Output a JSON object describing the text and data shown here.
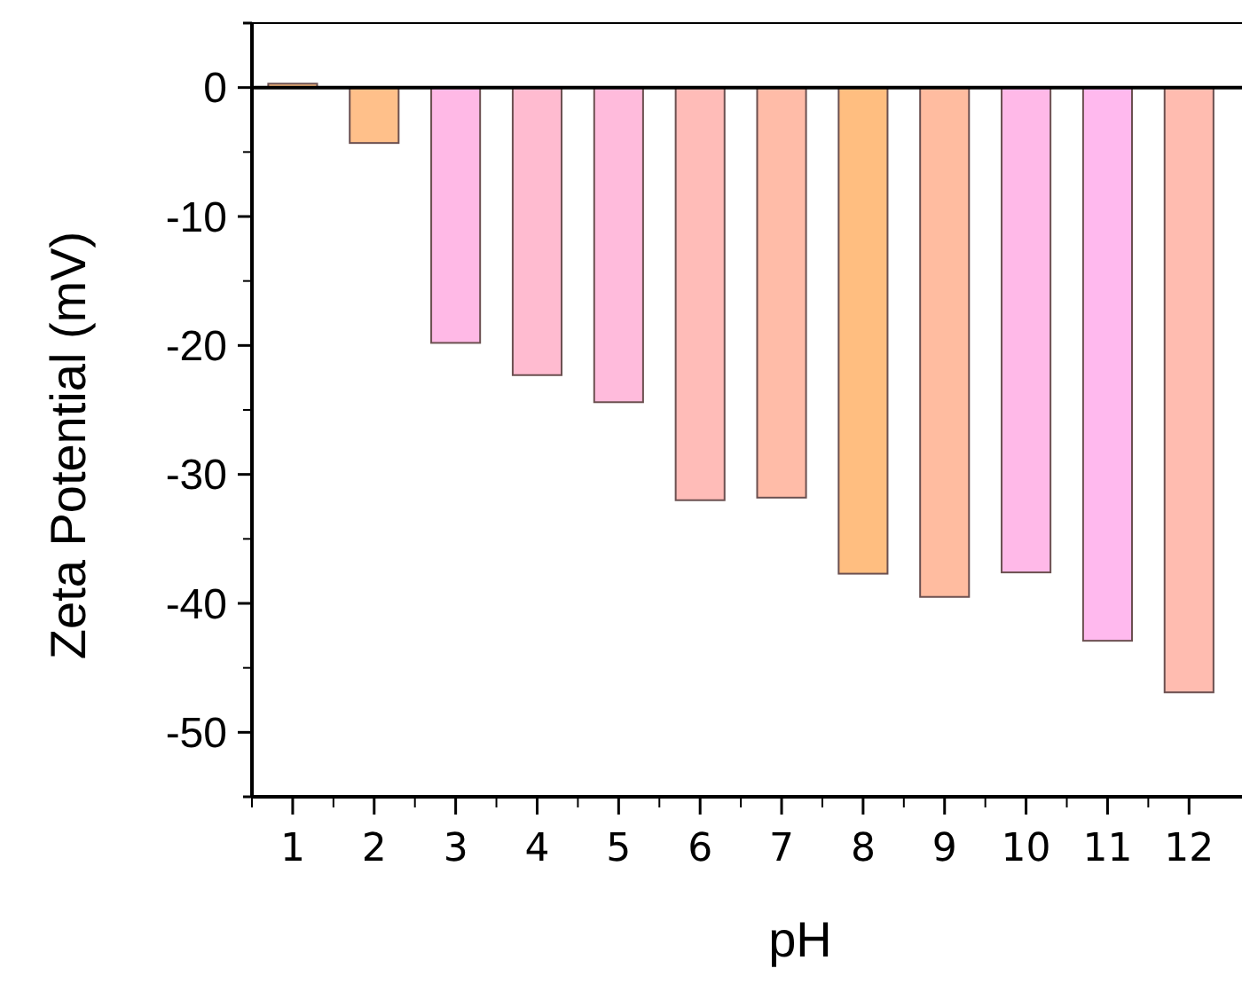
{
  "chart_data": {
    "type": "bar",
    "xlabel": "pH",
    "ylabel": "Zeta Potential (mV)",
    "x": [
      1,
      2,
      3,
      4,
      5,
      6,
      7,
      8,
      9,
      10,
      11,
      12
    ],
    "xlim": [
      0.5,
      12.65
    ],
    "xticks": [
      1,
      2,
      3,
      4,
      5,
      6,
      7,
      8,
      9,
      10,
      11,
      12
    ],
    "values": [
      0.3,
      -4.3,
      -19.8,
      -22.3,
      -24.4,
      -32.0,
      -31.8,
      -37.7,
      -39.5,
      -37.6,
      -42.9,
      -46.9
    ],
    "colors": [
      "#ffbf80",
      "#ffc08a",
      "#ffb9e6",
      "#ffbbd0",
      "#ffbbdc",
      "#ffbcb8",
      "#ffbca8",
      "#ffbe80",
      "#ffbca0",
      "#ffb9e8",
      "#ffb9ee",
      "#ffbcb0"
    ],
    "ylim": [
      -55,
      5
    ],
    "yticks": [
      {
        "value": 5,
        "label": null
      },
      0,
      -10,
      -20,
      -30,
      -40,
      -50,
      {
        "value": -55,
        "label": null
      }
    ],
    "ref_lines": [
      {
        "axis": "y",
        "value": 0,
        "color": "#000000"
      }
    ],
    "grid": false
  }
}
